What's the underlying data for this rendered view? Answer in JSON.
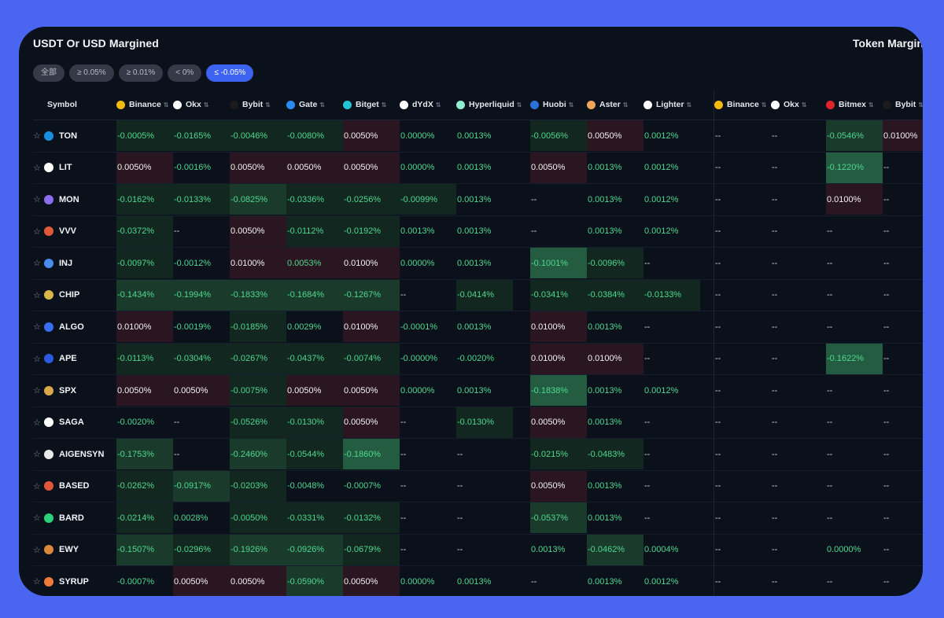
{
  "title_left": "USDT Or USD Margined",
  "title_right": "Token Margined",
  "filters": [
    {
      "label": "全部",
      "active": false
    },
    {
      "label": "≥ 0.05%",
      "active": false
    },
    {
      "label": "≥ 0.01%",
      "active": false
    },
    {
      "label": "< 0%",
      "active": false
    },
    {
      "label": "≤ -0.05%",
      "active": true
    }
  ],
  "symbol_header": "Symbol",
  "exchanges": [
    {
      "name": "Binance",
      "icon": "binance-icon",
      "color": "#f0b90b"
    },
    {
      "name": "Okx",
      "icon": "okx-icon",
      "color": "#ffffff"
    },
    {
      "name": "Bybit",
      "icon": "bybit-icon",
      "color": "#1b1b1b"
    },
    {
      "name": "Gate",
      "icon": "gate-icon",
      "color": "#2a8cf0"
    },
    {
      "name": "Bitget",
      "icon": "bitget-icon",
      "color": "#22c4d6"
    },
    {
      "name": "dYdX",
      "icon": "dydx-icon",
      "color": "#ffffff"
    },
    {
      "name": "Hyperliquid",
      "icon": "hyperliquid-icon",
      "color": "#8ff0cf"
    },
    {
      "name": "Huobi",
      "icon": "huobi-icon",
      "color": "#2b72d6"
    },
    {
      "name": "Aster",
      "icon": "aster-icon",
      "color": "#f0a35a"
    },
    {
      "name": "Lighter",
      "icon": "lighter-icon",
      "color": "#ffffff"
    },
    {
      "name": "Binance",
      "icon": "binance-icon",
      "color": "#f0b90b"
    },
    {
      "name": "Okx",
      "icon": "okx-icon",
      "color": "#ffffff"
    },
    {
      "name": "Bitmex",
      "icon": "bitmex-icon",
      "color": "#e0242c"
    },
    {
      "name": "Bybit",
      "icon": "bybit-icon",
      "color": "#1b1b1b"
    }
  ],
  "rows": [
    {
      "symbol": "TON",
      "coin_color": "#1a8fe0",
      "values": [
        "-0.0005%",
        "-0.0165%",
        "-0.0046%",
        "-0.0080%",
        "0.0050%",
        "0.0000%",
        "0.0013%",
        "-0.0056%",
        "0.0050%",
        "0.0012%",
        "--",
        "--",
        "-0.0546%",
        "0.0100%"
      ],
      "shade": [
        "g1",
        "g1",
        "g1",
        "g1",
        "r1",
        "",
        "",
        "g1",
        "r1",
        "",
        "",
        "",
        "g2",
        "r1"
      ]
    },
    {
      "symbol": "LIT",
      "coin_color": "#ffffff",
      "values": [
        "0.0050%",
        "-0.0016%",
        "0.0050%",
        "0.0050%",
        "0.0050%",
        "0.0000%",
        "0.0013%",
        "0.0050%",
        "0.0013%",
        "0.0012%",
        "--",
        "--",
        "-0.1220%",
        "--"
      ],
      "shade": [
        "r1",
        "",
        "r1",
        "r1",
        "r1",
        "",
        "",
        "r1",
        "",
        "",
        "",
        "",
        "g3",
        ""
      ]
    },
    {
      "symbol": "MON",
      "coin_color": "#8a6df0",
      "values": [
        "-0.0162%",
        "-0.0133%",
        "-0.0825%",
        "-0.0336%",
        "-0.0256%",
        "-0.0099%",
        "0.0013%",
        "--",
        "0.0013%",
        "0.0012%",
        "--",
        "--",
        "0.0100%",
        "--"
      ],
      "shade": [
        "g1",
        "g1",
        "g2",
        "g1",
        "g1",
        "g1",
        "",
        "",
        "",
        "",
        "",
        "",
        "r1",
        ""
      ]
    },
    {
      "symbol": "VVV",
      "coin_color": "#e05a3a",
      "values": [
        "-0.0372%",
        "--",
        "0.0050%",
        "-0.0112%",
        "-0.0192%",
        "0.0013%",
        "0.0013%",
        "--",
        "0.0013%",
        "0.0012%",
        "--",
        "--",
        "--",
        "--"
      ],
      "shade": [
        "g1",
        "",
        "r1",
        "g1",
        "g1",
        "",
        "",
        "",
        "",
        "",
        "",
        "",
        "",
        ""
      ]
    },
    {
      "symbol": "INJ",
      "coin_color": "#4a8cf0",
      "values": [
        "-0.0097%",
        "-0.0012%",
        "0.0100%",
        "0.0053%",
        "0.0100%",
        "0.0000%",
        "0.0013%",
        "-0.1001%",
        "-0.0096%",
        "--",
        "--",
        "--",
        "--",
        "--"
      ],
      "shade": [
        "g1",
        "",
        "r1",
        "r1",
        "r1",
        "",
        "",
        "g3",
        "g1",
        "",
        "",
        "",
        "",
        ""
      ]
    },
    {
      "symbol": "CHIP",
      "coin_color": "#d9b64a",
      "values": [
        "-0.1434%",
        "-0.1994%",
        "-0.1833%",
        "-0.1684%",
        "-0.1267%",
        "--",
        "-0.0414%",
        "-0.0341%",
        "-0.0384%",
        "-0.0133%",
        "--",
        "--",
        "--",
        "--"
      ],
      "shade": [
        "g2",
        "g2",
        "g2",
        "g2",
        "g2",
        "",
        "g1",
        "g1",
        "g1",
        "g1",
        "",
        "",
        "",
        ""
      ]
    },
    {
      "symbol": "ALGO",
      "coin_color": "#3a6df0",
      "values": [
        "0.0100%",
        "-0.0019%",
        "-0.0185%",
        "0.0029%",
        "0.0100%",
        "-0.0001%",
        "0.0013%",
        "0.0100%",
        "0.0013%",
        "--",
        "--",
        "--",
        "--",
        "--"
      ],
      "shade": [
        "r1",
        "",
        "g1",
        "",
        "r1",
        "",
        "",
        "r1",
        "",
        "",
        "",
        "",
        "",
        ""
      ]
    },
    {
      "symbol": "APE",
      "coin_color": "#2a5ae0",
      "values": [
        "-0.0113%",
        "-0.0304%",
        "-0.0267%",
        "-0.0437%",
        "-0.0074%",
        "-0.0000%",
        "-0.0020%",
        "0.0100%",
        "0.0100%",
        "--",
        "--",
        "--",
        "-0.1622%",
        "--"
      ],
      "shade": [
        "g1",
        "g1",
        "g1",
        "g1",
        "g1",
        "",
        "",
        "r1",
        "r1",
        "",
        "",
        "",
        "g3",
        ""
      ]
    },
    {
      "symbol": "SPX",
      "coin_color": "#d8a84a",
      "values": [
        "0.0050%",
        "0.0050%",
        "-0.0075%",
        "0.0050%",
        "0.0050%",
        "0.0000%",
        "0.0013%",
        "-0.1838%",
        "0.0013%",
        "0.0012%",
        "--",
        "--",
        "--",
        "--"
      ],
      "shade": [
        "r1",
        "r1",
        "g1",
        "r1",
        "r1",
        "",
        "",
        "g3",
        "",
        "",
        "",
        "",
        "",
        ""
      ]
    },
    {
      "symbol": "SAGA",
      "coin_color": "#ffffff",
      "values": [
        "-0.0020%",
        "--",
        "-0.0526%",
        "-0.0130%",
        "0.0050%",
        "--",
        "-0.0130%",
        "0.0050%",
        "0.0013%",
        "--",
        "--",
        "--",
        "--",
        "--"
      ],
      "shade": [
        "",
        "",
        "g1",
        "g1",
        "r1",
        "",
        "g1",
        "r1",
        "",
        "",
        "",
        "",
        "",
        ""
      ]
    },
    {
      "symbol": "AIGENSYN",
      "coin_color": "#e8e8e8",
      "values": [
        "-0.1753%",
        "--",
        "-0.2460%",
        "-0.0544%",
        "-0.1860%",
        "--",
        "--",
        "-0.0215%",
        "-0.0483%",
        "--",
        "--",
        "--",
        "--",
        "--"
      ],
      "shade": [
        "g2",
        "",
        "g2",
        "g1",
        "g3",
        "",
        "",
        "g1",
        "g1",
        "",
        "",
        "",
        "",
        ""
      ]
    },
    {
      "symbol": "BASED",
      "coin_color": "#e0563a",
      "values": [
        "-0.0262%",
        "-0.0917%",
        "-0.0203%",
        "-0.0048%",
        "-0.0007%",
        "--",
        "--",
        "0.0050%",
        "0.0013%",
        "--",
        "--",
        "--",
        "--",
        "--"
      ],
      "shade": [
        "g1",
        "g2",
        "g1",
        "",
        "",
        "",
        "",
        "r1",
        "",
        "",
        "",
        "",
        "",
        ""
      ]
    },
    {
      "symbol": "BARD",
      "coin_color": "#2ad07a",
      "values": [
        "-0.0214%",
        "0.0028%",
        "-0.0050%",
        "-0.0331%",
        "-0.0132%",
        "--",
        "--",
        "-0.0537%",
        "0.0013%",
        "--",
        "--",
        "--",
        "--",
        "--"
      ],
      "shade": [
        "g1",
        "",
        "g1",
        "g1",
        "g1",
        "",
        "",
        "g2",
        "",
        "",
        "",
        "",
        "",
        ""
      ]
    },
    {
      "symbol": "EWY",
      "coin_color": "#d88a3a",
      "values": [
        "-0.1507%",
        "-0.0296%",
        "-0.1926%",
        "-0.0926%",
        "-0.0679%",
        "--",
        "--",
        "0.0013%",
        "-0.0462%",
        "0.0004%",
        "--",
        "--",
        "0.0000%",
        "--"
      ],
      "shade": [
        "g2",
        "g1",
        "g2",
        "g2",
        "g1",
        "",
        "",
        "",
        "g2",
        "",
        "",
        "",
        "",
        ""
      ]
    },
    {
      "symbol": "SYRUP",
      "coin_color": "#f07a3a",
      "values": [
        "-0.0007%",
        "0.0050%",
        "0.0050%",
        "-0.0590%",
        "0.0050%",
        "0.0000%",
        "0.0013%",
        "--",
        "0.0013%",
        "0.0012%",
        "--",
        "--",
        "--",
        "--"
      ],
      "shade": [
        "",
        "r1",
        "r1",
        "g2",
        "r1",
        "",
        "",
        "",
        "",
        "",
        "",
        "",
        "",
        ""
      ]
    }
  ]
}
